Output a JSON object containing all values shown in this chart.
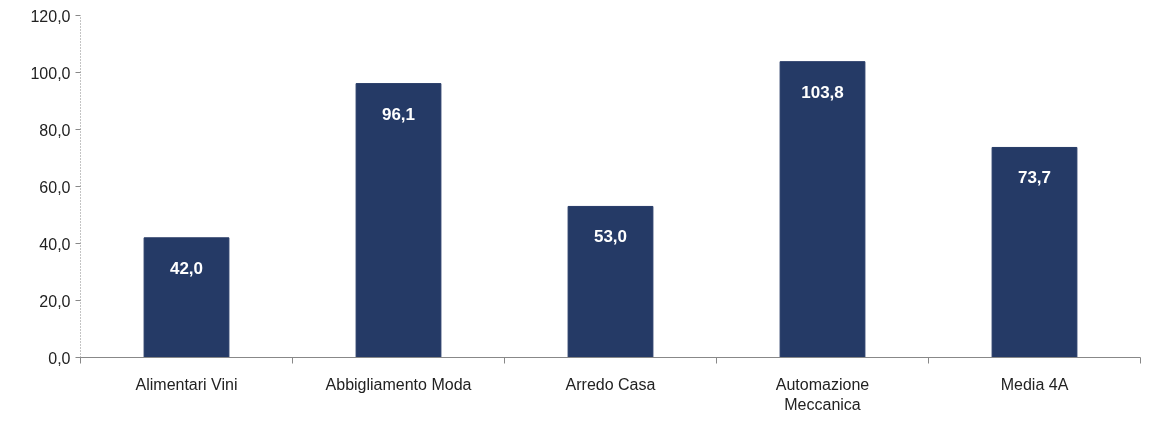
{
  "chart_data": {
    "type": "bar",
    "categories": [
      "Alimentari Vini",
      "Abbigliamento Moda",
      "Arredo Casa",
      "Automazione Meccanica",
      "Media 4A"
    ],
    "values": [
      42.0,
      96.1,
      53.0,
      103.8,
      73.7
    ],
    "value_labels": [
      "42,0",
      "96,1",
      "53,0",
      "103,8",
      "73,7"
    ],
    "color": "#253a66",
    "ylim": [
      0,
      120
    ],
    "yticks": [
      {
        "value": 0,
        "label": "0,0"
      },
      {
        "value": 20,
        "label": "20,0"
      },
      {
        "value": 40,
        "label": "40,0"
      },
      {
        "value": 60,
        "label": "60,0"
      },
      {
        "value": 80,
        "label": "80,0"
      },
      {
        "value": 100,
        "label": "100,0"
      },
      {
        "value": 120,
        "label": "120,0"
      }
    ],
    "grid": false
  }
}
